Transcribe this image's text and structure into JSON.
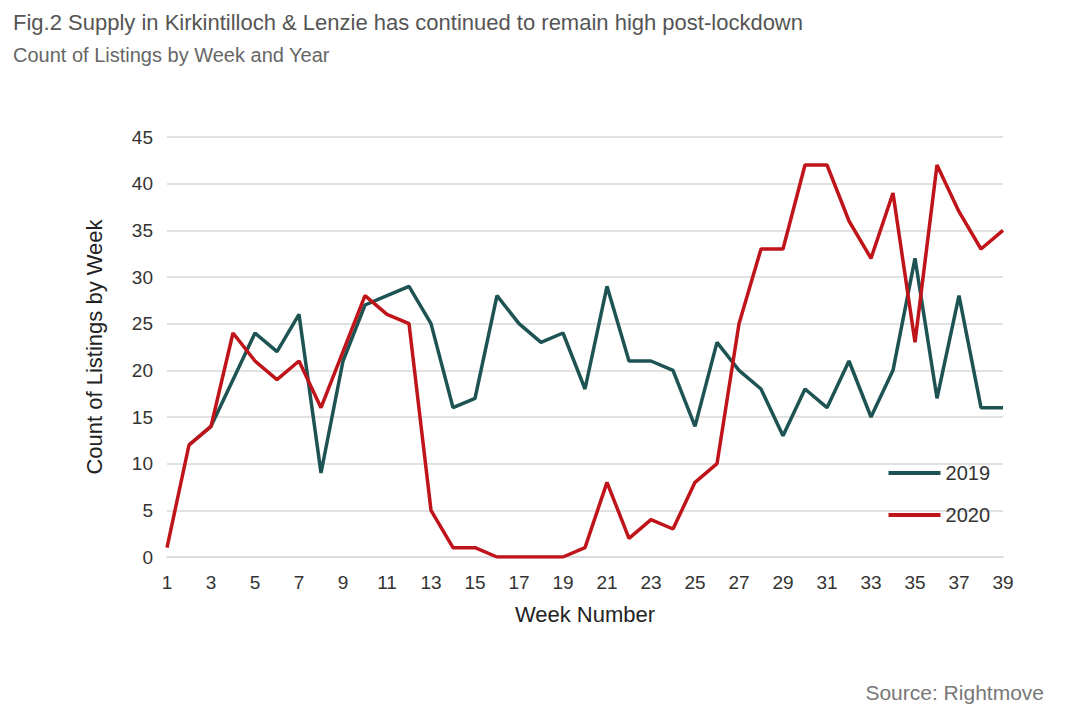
{
  "chart_data": {
    "type": "line",
    "title": "Fig.2 Supply in Kirkintilloch & Lenzie has continued to remain high post-lockdown",
    "subtitle": "Count of Listings by Week and Year",
    "x_label": "Week Number",
    "y_label": "Count of Listings by Week",
    "source": "Source: Rightmove",
    "categories": [
      "1",
      null,
      "3",
      null,
      "5",
      null,
      "7",
      null,
      "9",
      null,
      "11",
      null,
      "13",
      null,
      "15",
      null,
      "17",
      null,
      "19",
      null,
      "21",
      null,
      "23",
      null,
      "25",
      null,
      "27",
      null,
      "29",
      null,
      "31",
      null,
      "33",
      null,
      "35",
      null,
      "37",
      null,
      "39"
    ],
    "series": [
      {
        "name": "2019",
        "color": "#1d5352",
        "values": [
          null,
          12,
          14,
          19,
          24,
          22,
          26,
          9,
          21,
          27,
          28,
          29,
          25,
          16,
          17,
          28,
          25,
          23,
          24,
          18,
          29,
          21,
          21,
          20,
          14,
          23,
          20,
          18,
          13,
          18,
          16,
          21,
          15,
          20,
          32,
          17,
          28,
          16,
          16
        ]
      },
      {
        "name": "2020",
        "color": "#c0141b",
        "values": [
          1,
          12,
          14,
          24,
          21,
          19,
          21,
          16,
          22,
          28,
          26,
          25,
          5,
          1,
          1,
          0,
          0,
          0,
          0,
          1,
          8,
          2,
          4,
          3,
          8,
          10,
          25,
          33,
          33,
          42,
          42,
          36,
          32,
          39,
          23,
          42,
          37,
          33,
          35
        ]
      }
    ],
    "ylim": [
      0,
      45
    ],
    "yticks": [
      0,
      5,
      10,
      15,
      20,
      25,
      30,
      35,
      40,
      45
    ],
    "grid": true,
    "legend": "lower right"
  }
}
